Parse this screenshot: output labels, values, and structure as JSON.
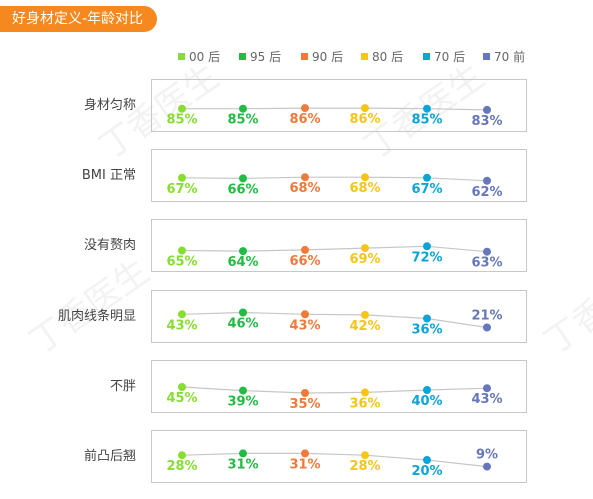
{
  "title": "好身材定义-年龄对比",
  "colors": {
    "title_bg": "#f5891f",
    "panel_border": "#c8c8c8",
    "connector": "#c7c7c7",
    "row_label": "#444444"
  },
  "watermark_text": "丁香医生",
  "chart_data": {
    "type": "line",
    "title": "好身材定义-年龄对比",
    "legend_position": "top",
    "categories": [
      "身材匀称",
      "BMI 正常",
      "没有赘肉",
      "肌肉线条明显",
      "不胖",
      "前凸后翘"
    ],
    "series": [
      {
        "name": "00 后",
        "color": "#88dd33",
        "values": [
          85,
          67,
          65,
          43,
          45,
          28
        ]
      },
      {
        "name": "95 后",
        "color": "#22bb44",
        "values": [
          85,
          66,
          64,
          46,
          39,
          31
        ]
      },
      {
        "name": "90 后",
        "color": "#f07a3a",
        "values": [
          86,
          68,
          66,
          43,
          35,
          31
        ]
      },
      {
        "name": "80 后",
        "color": "#f5c518",
        "values": [
          86,
          68,
          69,
          42,
          36,
          28
        ]
      },
      {
        "name": "70 后",
        "color": "#0aa5d6",
        "values": [
          85,
          67,
          72,
          36,
          40,
          20
        ]
      },
      {
        "name": "70 前",
        "color": "#6677bb",
        "values": [
          83,
          62,
          63,
          21,
          43,
          9
        ]
      }
    ],
    "unit": "%"
  }
}
